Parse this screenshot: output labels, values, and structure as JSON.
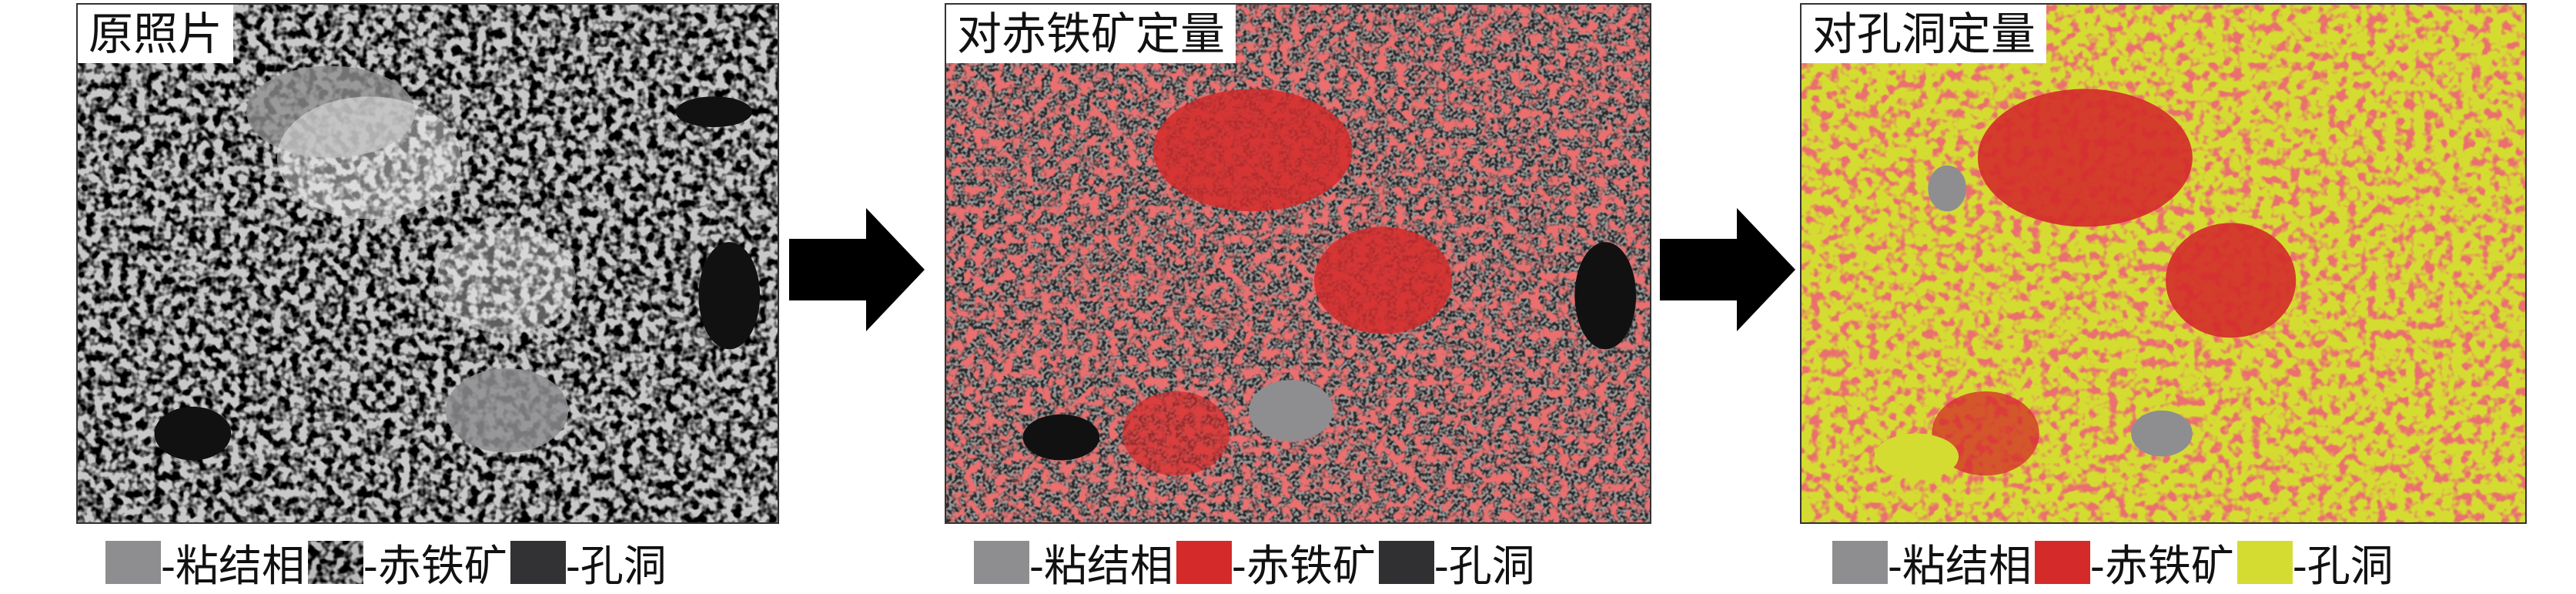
{
  "panels": [
    {
      "title": "原照片",
      "legend": [
        {
          "label": "-粘结相",
          "color": "#8e8e90"
        },
        {
          "label": "-赤铁矿",
          "color": "pattern-gray-speckle"
        },
        {
          "label": "-孔洞",
          "color": "#323234"
        }
      ]
    },
    {
      "title": "对赤铁矿定量",
      "legend": [
        {
          "label": "-粘结相",
          "color": "#8e8e90"
        },
        {
          "label": "-赤铁矿",
          "color": "#d42a2a"
        },
        {
          "label": "-孔洞",
          "color": "#303032"
        }
      ]
    },
    {
      "title": "对孔洞定量",
      "legend": [
        {
          "label": "-粘结相",
          "color": "#8e8e90"
        },
        {
          "label": "-赤铁矿",
          "color": "#d42a2a"
        },
        {
          "label": "-孔洞",
          "color": "#d4dc32"
        }
      ]
    }
  ],
  "arrows": [
    "arrow-right-icon",
    "arrow-right-icon"
  ]
}
